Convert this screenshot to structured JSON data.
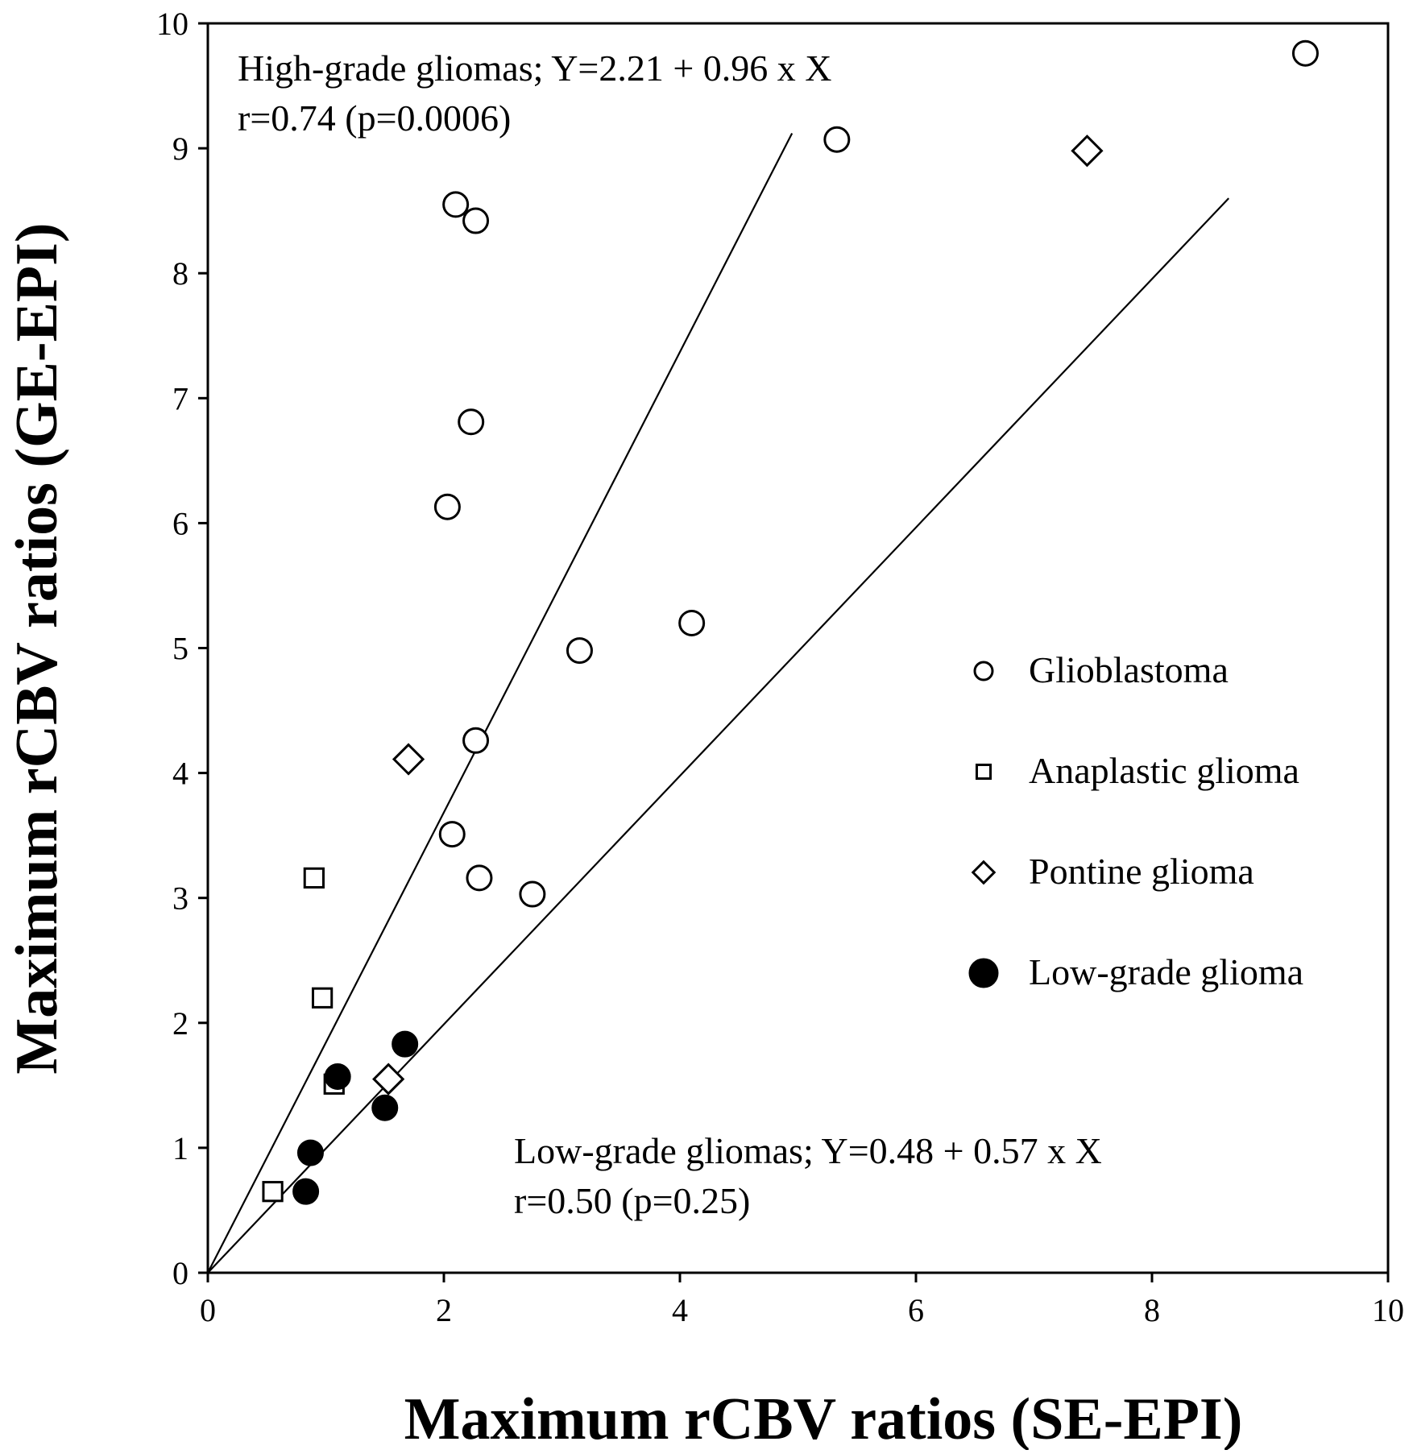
{
  "chart_data": {
    "type": "scatter",
    "xlabel": "Maximum rCBV ratios (SE-EPI)",
    "ylabel": "Maximum rCBV ratios (GE-EPI)",
    "xlim": [
      0,
      10
    ],
    "ylim": [
      0,
      10
    ],
    "x_ticks": [
      "0",
      "2",
      "4",
      "6",
      "8",
      "10"
    ],
    "y_ticks": [
      "0",
      "1",
      "2",
      "3",
      "4",
      "5",
      "6",
      "7",
      "8",
      "9",
      "10"
    ],
    "grid": false,
    "legend_position": "right",
    "series": [
      {
        "name": "Glioblastoma",
        "marker": "open-circle",
        "points": [
          [
            2.1,
            8.55
          ],
          [
            2.27,
            8.42
          ],
          [
            2.23,
            6.81
          ],
          [
            2.03,
            6.13
          ],
          [
            3.15,
            4.98
          ],
          [
            4.1,
            5.2
          ],
          [
            2.27,
            4.26
          ],
          [
            2.07,
            3.51
          ],
          [
            2.3,
            3.16
          ],
          [
            2.75,
            3.03
          ],
          [
            5.33,
            9.07
          ],
          [
            9.3,
            9.76
          ]
        ]
      },
      {
        "name": "Anaplastic glioma",
        "marker": "open-square",
        "points": [
          [
            0.9,
            3.16
          ],
          [
            0.97,
            2.2
          ],
          [
            1.07,
            1.51
          ],
          [
            0.55,
            0.65
          ]
        ]
      },
      {
        "name": "Pontine glioma",
        "marker": "open-diamond",
        "points": [
          [
            1.7,
            4.11
          ],
          [
            7.45,
            8.98
          ],
          [
            1.53,
            1.55
          ]
        ]
      },
      {
        "name": "Low-grade glioma",
        "marker": "filled-circle",
        "points": [
          [
            1.67,
            1.83
          ],
          [
            1.1,
            1.57
          ],
          [
            1.5,
            1.32
          ],
          [
            0.87,
            0.96
          ],
          [
            0.83,
            0.65
          ]
        ]
      }
    ],
    "regression_lines": [
      {
        "label": "High-grade gliomas",
        "x_range": [
          0,
          4.95
        ],
        "y_range": [
          0,
          9.12
        ]
      },
      {
        "label": "Low-grade gliomas",
        "x_range": [
          0,
          8.65
        ],
        "y_range": [
          0,
          8.6
        ]
      }
    ],
    "annotations": {
      "high_grade": {
        "line1": "High-grade gliomas; Y=2.21 + 0.96 x X",
        "line2": "r=0.74 (p=0.0006)"
      },
      "low_grade": {
        "line1": "Low-grade gliomas; Y=0.48 + 0.57 x X",
        "line2": "r=0.50 (p=0.25)"
      }
    }
  }
}
